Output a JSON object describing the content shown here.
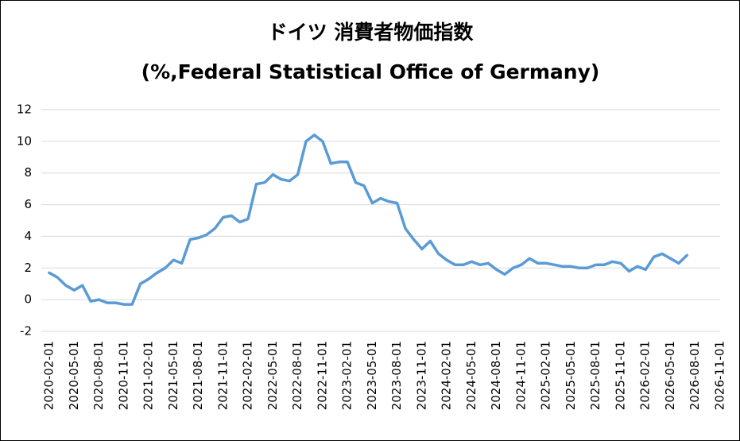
{
  "chart_data": {
    "type": "line",
    "title": "ドイツ 消費者物価指数",
    "subtitle": "(%,Federal Statistical Office of Germany)",
    "x": [
      "2020-02-01",
      "2020-03-01",
      "2020-04-01",
      "2020-05-01",
      "2020-06-01",
      "2020-07-01",
      "2020-08-01",
      "2020-09-01",
      "2020-10-01",
      "2020-11-01",
      "2020-12-01",
      "2021-01-01",
      "2021-02-01",
      "2021-03-01",
      "2021-04-01",
      "2021-05-01",
      "2021-06-01",
      "2021-07-01",
      "2021-08-01",
      "2021-09-01",
      "2021-10-01",
      "2021-11-01",
      "2021-12-01",
      "2022-01-01",
      "2022-02-01",
      "2022-03-01",
      "2022-04-01",
      "2022-05-01",
      "2022-06-01",
      "2022-07-01",
      "2022-08-01",
      "2022-09-01",
      "2022-10-01",
      "2022-11-01",
      "2022-12-01",
      "2023-01-01",
      "2023-02-01",
      "2023-03-01",
      "2023-04-01",
      "2023-05-01",
      "2023-06-01",
      "2023-07-01",
      "2023-08-01",
      "2023-09-01",
      "2023-10-01",
      "2023-11-01",
      "2023-12-01",
      "2024-01-01",
      "2024-02-01",
      "2024-03-01",
      "2024-04-01",
      "2024-05-01",
      "2024-06-01",
      "2024-07-01",
      "2024-08-01",
      "2024-09-01",
      "2024-10-01",
      "2024-11-01",
      "2024-12-01",
      "2025-01-01",
      "2025-02-01",
      "2025-03-01",
      "2025-04-01",
      "2025-05-01",
      "2025-06-01",
      "2025-07-01",
      "2025-08-01",
      "2025-09-01",
      "2025-10-01",
      "2025-11-01",
      "2025-12-01",
      "2026-01-01",
      "2026-02-01",
      "2026-03-01",
      "2026-04-01",
      "2026-05-01",
      "2026-06-01",
      "2026-07-01"
    ],
    "series": [
      {
        "name": "ドイツ 消費者物価指数",
        "color": "#5b9bd5",
        "values": [
          1.7,
          1.4,
          0.9,
          0.6,
          0.9,
          -0.1,
          0.0,
          -0.2,
          -0.2,
          -0.3,
          -0.3,
          1.0,
          1.3,
          1.7,
          2.0,
          2.5,
          2.3,
          3.8,
          3.9,
          4.1,
          4.5,
          5.2,
          5.3,
          4.9,
          5.1,
          7.3,
          7.4,
          7.9,
          7.6,
          7.5,
          7.9,
          10.0,
          10.4,
          10.0,
          8.6,
          8.7,
          8.7,
          7.4,
          7.2,
          6.1,
          6.4,
          6.2,
          6.1,
          4.5,
          3.8,
          3.2,
          3.7,
          2.9,
          2.5,
          2.2,
          2.2,
          2.4,
          2.2,
          2.3,
          1.9,
          1.6,
          2.0,
          2.2,
          2.6,
          2.3,
          2.3,
          2.2,
          2.1,
          2.1,
          2.0,
          2.0,
          2.2,
          2.2,
          2.4,
          2.3,
          1.8,
          2.1,
          1.9,
          2.7,
          2.9,
          2.6,
          2.3,
          2.8
        ]
      }
    ],
    "xlim": [
      "2020-02-01",
      "2026-11-01"
    ],
    "xticks": [
      "2020-02-01",
      "2020-05-01",
      "2020-08-01",
      "2020-11-01",
      "2021-02-01",
      "2021-05-01",
      "2021-08-01",
      "2021-11-01",
      "2022-02-01",
      "2022-05-01",
      "2022-08-01",
      "2022-11-01",
      "2023-02-01",
      "2023-05-01",
      "2023-08-01",
      "2023-11-01",
      "2024-02-01",
      "2024-05-01",
      "2024-08-01",
      "2024-11-01",
      "2025-02-01",
      "2025-05-01",
      "2025-08-01",
      "2025-11-01",
      "2026-02-01",
      "2026-05-01",
      "2026-08-01",
      "2026-11-01"
    ],
    "ylim": [
      -2,
      12
    ],
    "yticks": [
      -2,
      0,
      2,
      4,
      6,
      8,
      10,
      12
    ],
    "grid": true
  }
}
